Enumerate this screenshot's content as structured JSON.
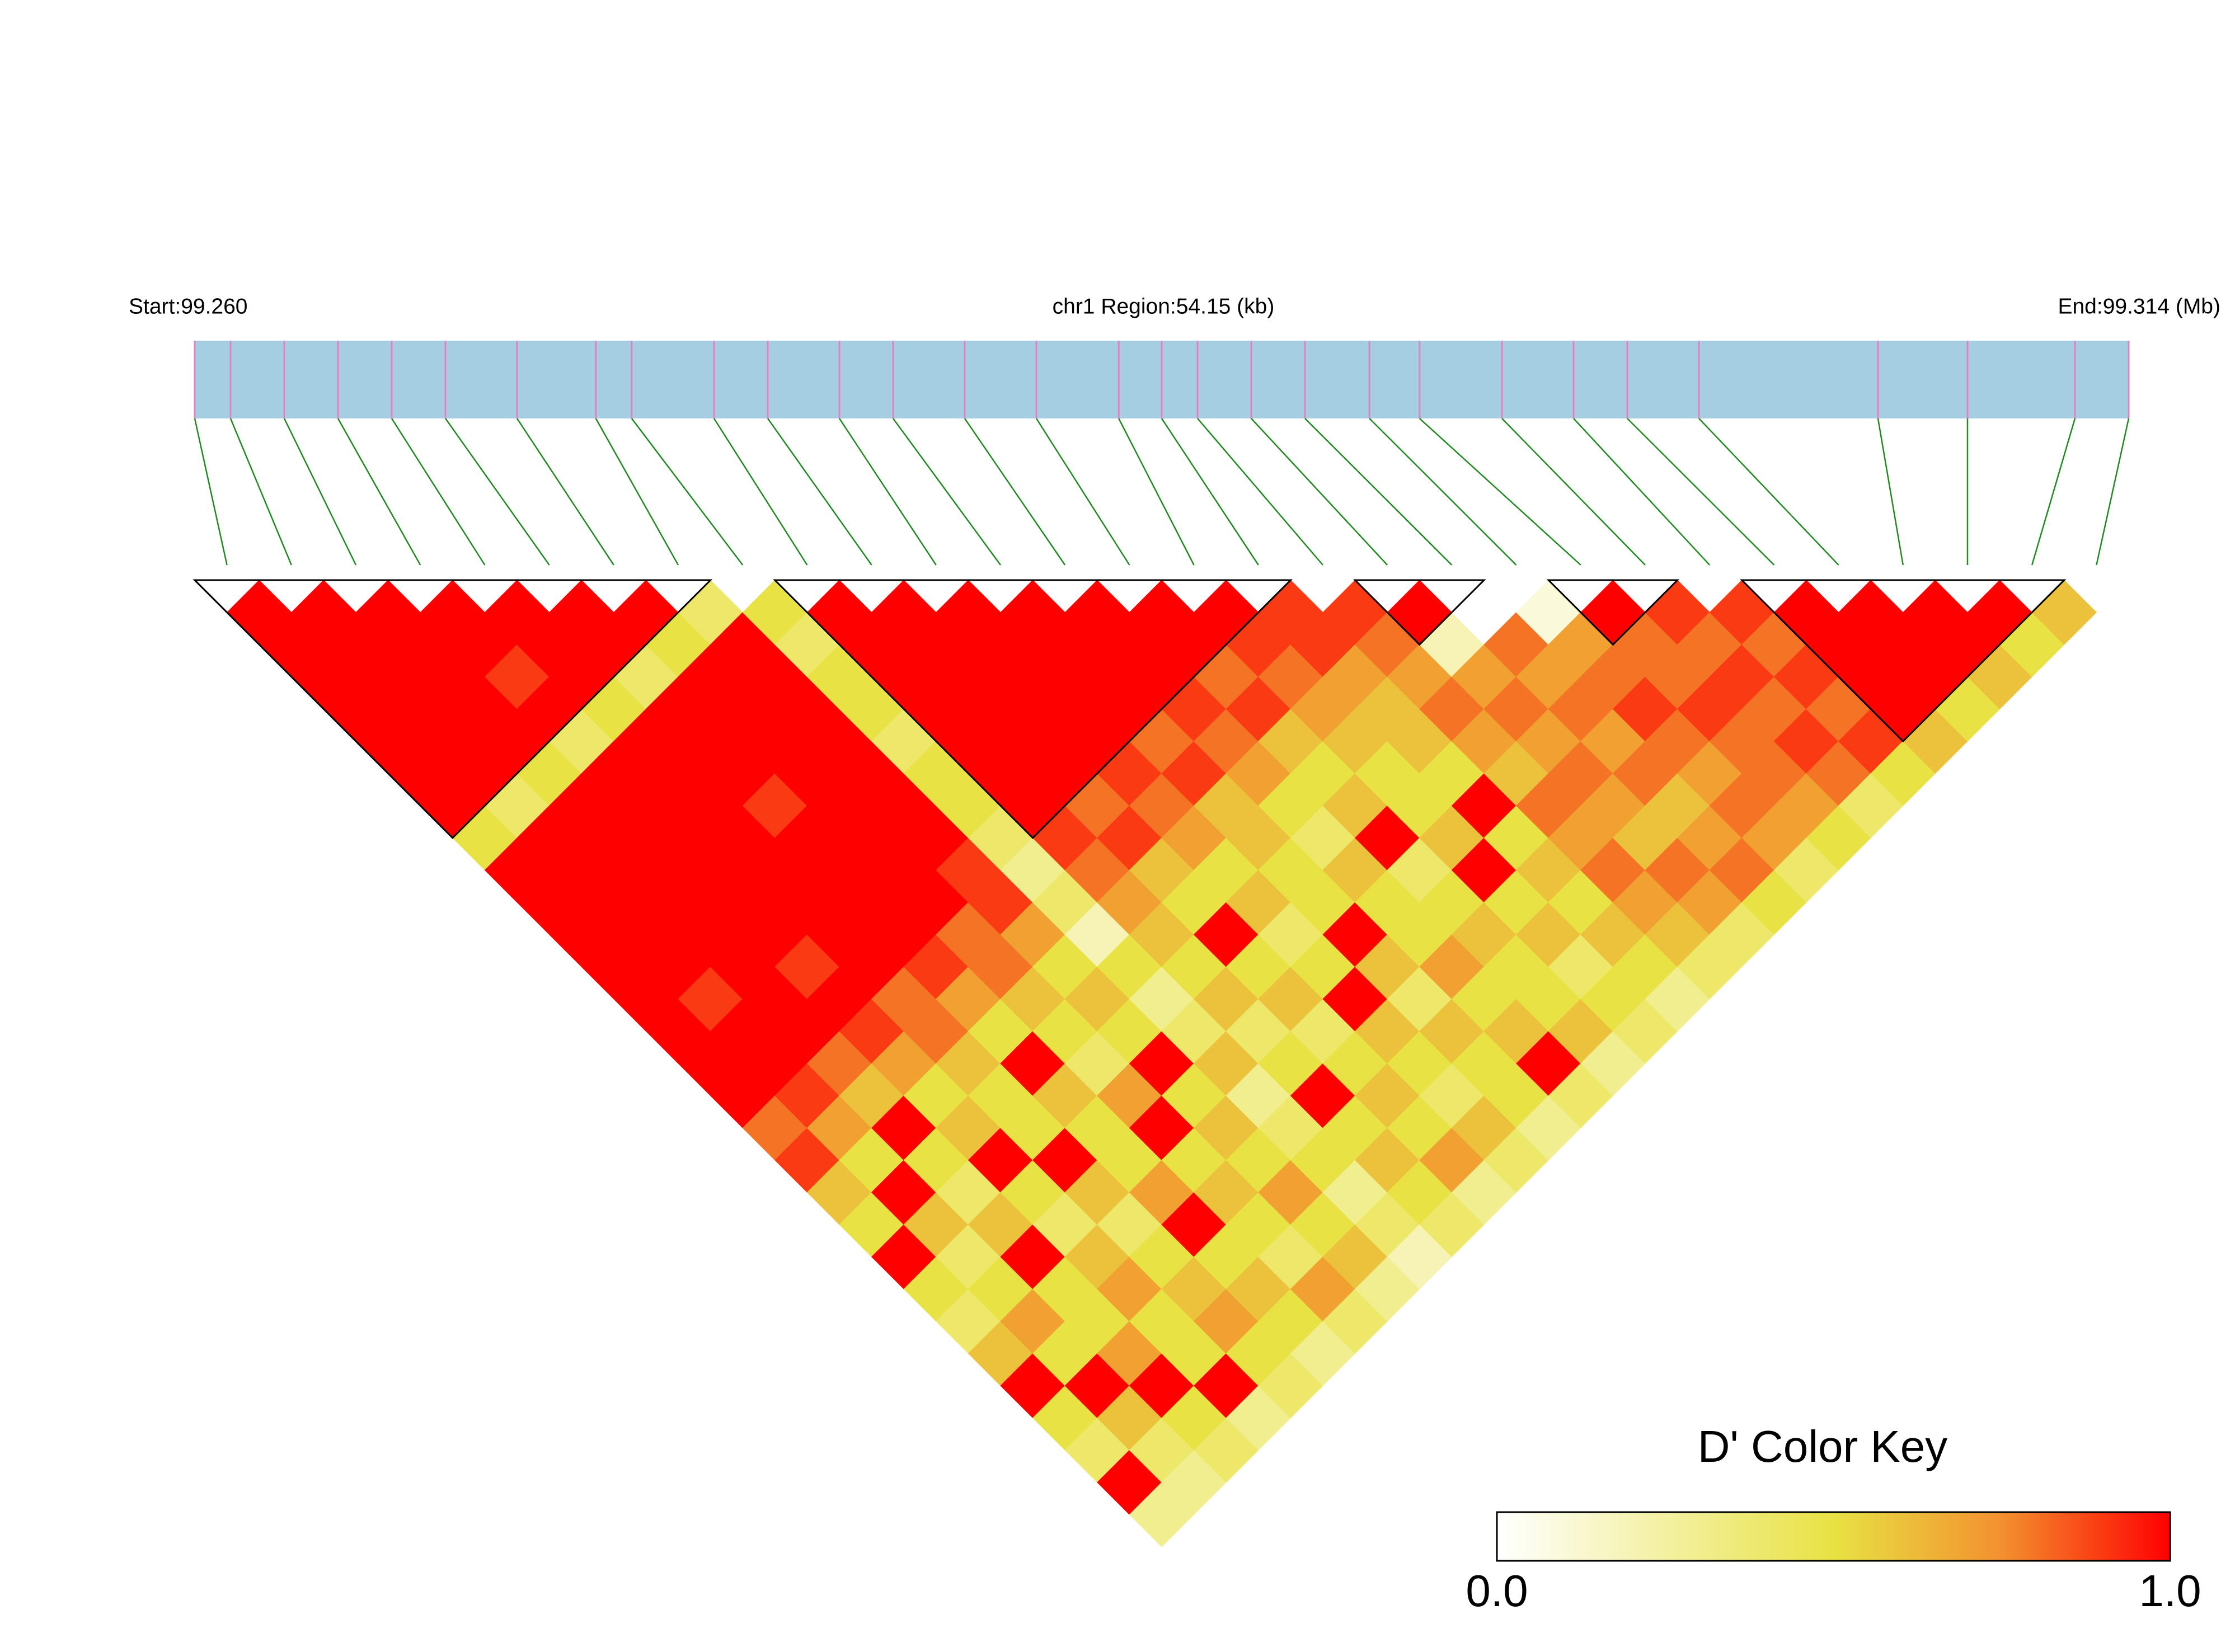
{
  "chart_data": {
    "type": "ld-heatmap",
    "title": "chr1 Region:54.15 (kb)",
    "start": {
      "value": 99.26,
      "label": "Start:99.260"
    },
    "end": {
      "value": 99.314,
      "label": "End:99.314 (Mb)"
    },
    "snp_positions": [
      99.26,
      99.261,
      99.2625,
      99.264,
      99.2655,
      99.267,
      99.269,
      99.2712,
      99.2722,
      99.2745,
      99.276,
      99.278,
      99.2795,
      99.2815,
      99.2835,
      99.2858,
      99.287,
      99.288,
      99.2895,
      99.291,
      99.2928,
      99.2942,
      99.2965,
      99.2985,
      99.3,
      99.302,
      99.307,
      99.3095,
      99.3125,
      99.314
    ],
    "ld": [
      [
        1,
        1,
        1,
        1,
        1,
        1,
        1,
        0.5,
        1,
        1,
        1,
        1,
        1,
        1,
        1,
        1,
        0.8,
        0.9,
        0.6,
        0.5,
        1,
        0.5,
        0.4,
        0.6,
        1,
        0.5,
        0.4,
        1,
        0.3
      ],
      [
        1,
        1,
        1,
        1,
        1,
        1,
        0.4,
        1,
        1,
        1,
        1,
        1,
        0.9,
        1,
        1,
        0.9,
        0.7,
        0.5,
        1,
        0.6,
        0.4,
        0.5,
        0.7,
        0.5,
        1,
        0.6,
        0.4,
        0.3
      ],
      [
        1,
        1,
        1,
        1,
        1,
        0.5,
        1,
        1,
        1,
        1,
        1,
        1,
        1,
        1,
        0.8,
        0.6,
        1,
        0.5,
        0.4,
        0.6,
        1,
        0.5,
        0.5,
        0.7,
        1,
        0.5,
        0.4
      ],
      [
        1,
        1,
        0.9,
        1,
        0.4,
        1,
        1,
        1,
        1,
        1,
        1,
        0.9,
        1,
        0.9,
        0.7,
        0.5,
        0.6,
        1,
        0.5,
        0.4,
        0.6,
        0.7,
        0.5,
        0.5,
        1,
        0.3
      ],
      [
        1,
        1,
        1,
        0.5,
        1,
        1,
        1,
        1,
        1,
        1,
        1,
        1,
        0.8,
        0.8,
        0.6,
        0.5,
        0.5,
        1,
        0.6,
        0.4,
        0.5,
        0.6,
        0.7,
        0.5,
        0.4
      ],
      [
        1,
        1,
        0.4,
        1,
        1,
        1,
        0.9,
        1,
        1,
        1,
        1,
        0.9,
        0.7,
        0.5,
        1,
        0.6,
        0.5,
        0.5,
        0.7,
        1,
        0.5,
        0.6,
        0.5,
        0.3
      ],
      [
        1,
        0.5,
        1,
        1,
        1,
        1,
        1,
        1,
        1,
        1,
        0.8,
        0.8,
        0.6,
        0.5,
        0.4,
        0.7,
        1,
        0.5,
        0.6,
        0.5,
        0.4,
        0.7,
        0.4
      ],
      [
        0.4,
        1,
        1,
        1,
        1,
        1,
        1,
        1,
        0.9,
        0.9,
        0.7,
        0.5,
        0.6,
        0.5,
        1,
        0.5,
        0.6,
        0.5,
        0.7,
        0.5,
        0.6,
        0.3
      ],
      [
        0.5,
        0.4,
        0.5,
        0.5,
        0.4,
        0.5,
        0.5,
        0.4,
        0.3,
        0.4,
        0.2,
        0.5,
        0.3,
        0.4,
        0.6,
        0.3,
        0.4,
        0.5,
        0.3,
        0.4,
        0.2
      ],
      [
        1,
        1,
        1,
        1,
        1,
        1,
        1,
        0.9,
        0.8,
        0.7,
        0.6,
        0.5,
        0.6,
        0.4,
        0.5,
        1,
        0.5,
        0.6,
        0.5,
        0.4
      ],
      [
        1,
        1,
        1,
        1,
        1,
        1,
        0.8,
        0.9,
        0.6,
        0.5,
        1,
        0.5,
        0.6,
        0.4,
        0.5,
        0.6,
        0.5,
        0.7,
        0.3
      ],
      [
        1,
        1,
        1,
        1,
        1,
        0.9,
        0.8,
        0.7,
        0.5,
        0.6,
        0.4,
        0.5,
        1,
        0.6,
        0.5,
        0.4,
        0.6,
        0.4
      ],
      [
        1,
        1,
        1,
        1,
        0.8,
        0.9,
        0.6,
        0.6,
        0.5,
        0.5,
        1,
        0.6,
        0.4,
        0.6,
        0.5,
        0.5,
        0.3
      ],
      [
        1,
        1,
        1,
        0.9,
        0.8,
        0.7,
        0.5,
        0.4,
        0.6,
        0.5,
        0.5,
        0.7,
        0.5,
        0.6,
        1,
        0.4
      ],
      [
        1,
        1,
        0.8,
        0.9,
        0.6,
        0.5,
        0.6,
        1,
        0.4,
        0.5,
        0.6,
        0.5,
        0.5,
        0.6,
        0.3
      ],
      [
        1,
        0.9,
        0.8,
        0.7,
        0.6,
        0.5,
        0.5,
        0.6,
        1,
        0.5,
        0.6,
        0.4,
        0.5,
        0.4
      ],
      [
        0.9,
        0.9,
        0.7,
        0.6,
        0.6,
        0.5,
        1,
        0.5,
        0.6,
        0.5,
        0.6,
        0.5,
        0.3
      ],
      [
        0.9,
        0.8,
        0.7,
        0.8,
        0.7,
        0.6,
        0.8,
        0.7,
        0.8,
        0.7,
        0.6,
        0.4
      ],
      [
        1,
        0.2,
        0.7,
        0.8,
        0.7,
        0.8,
        0.7,
        0.6,
        0.8,
        0.7,
        0.4
      ],
      [
        0,
        0.8,
        0.7,
        0.8,
        0.7,
        0.8,
        0.6,
        0.7,
        0.8,
        0.5
      ],
      [
        0.1,
        0.7,
        0.8,
        0.9,
        0.8,
        0.7,
        0.8,
        0.7,
        0.4
      ],
      [
        1,
        0.8,
        0.8,
        0.9,
        0.8,
        0.8,
        0.7,
        0.5
      ],
      [
        0.9,
        0.8,
        0.9,
        0.8,
        0.9,
        0.8,
        0.4
      ],
      [
        0.9,
        0.8,
        0.9,
        0.8,
        0.9,
        0.5
      ],
      [
        1,
        1,
        1,
        1,
        0.6
      ],
      [
        1,
        1,
        1,
        0.5
      ],
      [
        1,
        1,
        0.6
      ],
      [
        1,
        0.5
      ],
      [
        0.6
      ]
    ],
    "blocks": [
      [
        0,
        7
      ],
      [
        9,
        16
      ],
      [
        18,
        19
      ],
      [
        21,
        22
      ],
      [
        24,
        28
      ]
    ],
    "bar_color": "#a6cee3",
    "snp_mark_color": "#e57fc4",
    "link_color": "#1f8a1f",
    "block_color": "#000000",
    "color_key": {
      "title": "D' Color Key",
      "colors": [
        "#ffffff",
        "#e8e244",
        "#f3902e",
        "#ff0000"
      ],
      "stops": [
        0,
        0.5,
        0.75,
        1
      ],
      "ticks": [
        {
          "value": 0,
          "label": "0.0"
        },
        {
          "value": 1,
          "label": "1.0"
        }
      ]
    }
  }
}
